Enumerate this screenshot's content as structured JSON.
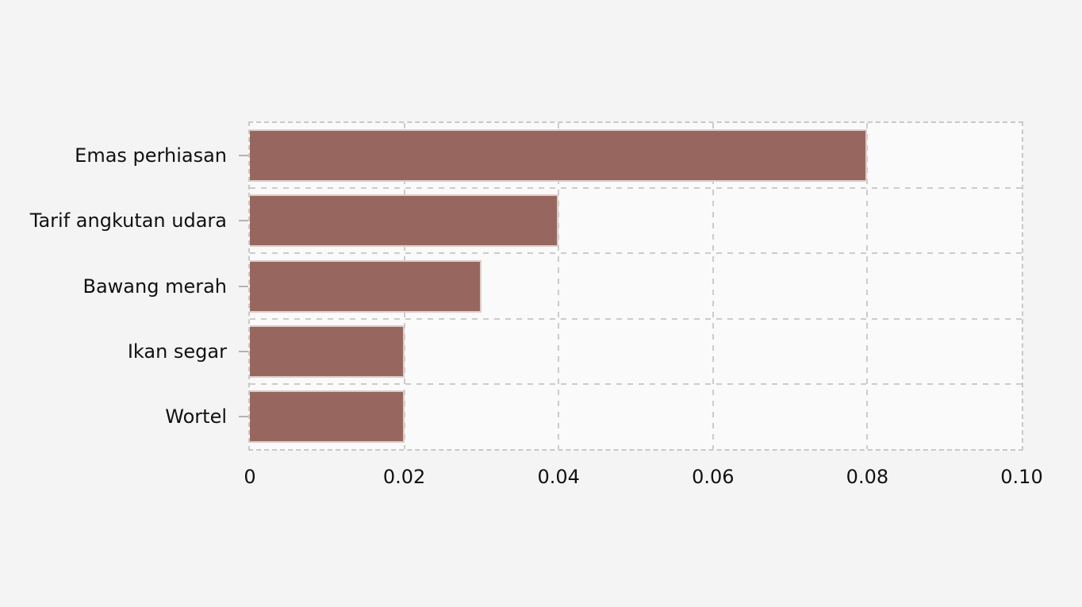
{
  "page": {
    "background_color": "#f4f4f5"
  },
  "chart_data": {
    "type": "bar",
    "orientation": "horizontal",
    "title": "",
    "xlabel": "",
    "ylabel": "",
    "categories": [
      "Emas perhiasan",
      "Tarif angkutan udara",
      "Bawang merah",
      "Ikan segar",
      "Wortel"
    ],
    "values": [
      0.08,
      0.04,
      0.03,
      0.02,
      0.02
    ],
    "xlim": [
      0,
      0.1
    ],
    "xticks": [
      0,
      0.02,
      0.04,
      0.06,
      0.08,
      0.1
    ],
    "xtick_labels": [
      "0",
      "0.02",
      "0.04",
      "0.06",
      "0.08",
      "0.10"
    ],
    "grid": "dashed, on x ticks and between category rows",
    "legend_position": "none",
    "bar_color": "#97675f",
    "bar_edge_color": "#ddccc8",
    "plot_background_color": "#fafafa",
    "gridline_color": "#cccccc",
    "axis_border_color": "#c9c9c9",
    "tick_mark_color": "#b3b3b3",
    "text_color": "#111111"
  }
}
